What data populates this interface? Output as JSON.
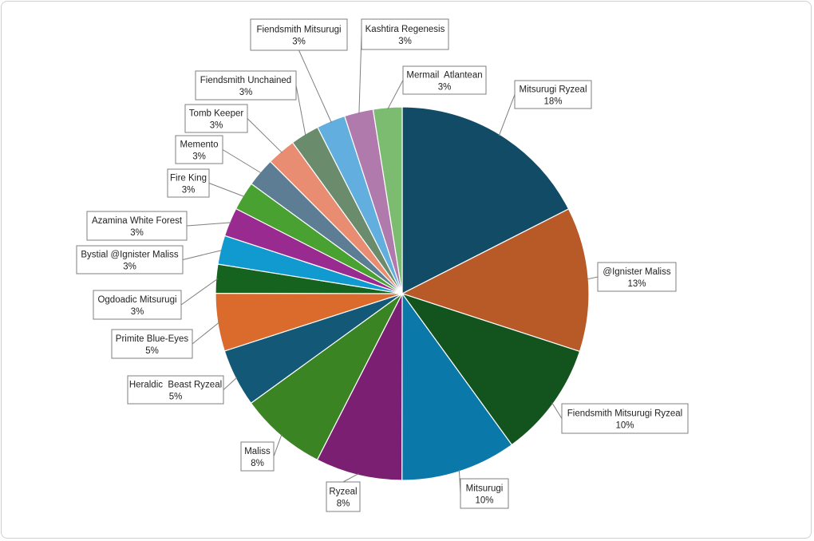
{
  "chart_data": {
    "type": "pie",
    "title": "",
    "start_angle_deg": 0,
    "direction": "clockwise",
    "slices": [
      {
        "label": "Mitsurugi Ryzeal",
        "percent_label": "18%",
        "value": 17.95,
        "color": "#124b66"
      },
      {
        "label": "@Ignister Maliss",
        "percent_label": "13%",
        "value": 12.82,
        "color": "#b85a27"
      },
      {
        "label": "Fiendsmith Mitsurugi Ryzeal",
        "percent_label": "10%",
        "value": 10.26,
        "color": "#12531e"
      },
      {
        "label": "Mitsurugi",
        "percent_label": "10%",
        "value": 10.26,
        "color": "#0a78a8"
      },
      {
        "label": "Ryzeal",
        "percent_label": "8%",
        "value": 7.69,
        "color": "#7a1f72"
      },
      {
        "label": "Maliss",
        "percent_label": "8%",
        "value": 7.69,
        "color": "#3a8424"
      },
      {
        "label": "Heraldic  Beast Ryzeal",
        "percent_label": "5%",
        "value": 5.13,
        "color": "#135877"
      },
      {
        "label": "Primite Blue-Eyes",
        "percent_label": "5%",
        "value": 5.13,
        "color": "#db6a2d"
      },
      {
        "label": "Ogdoadic Mitsurugi",
        "percent_label": "3%",
        "value": 2.56,
        "color": "#16621f"
      },
      {
        "label": "Bystial @Ignister Maliss",
        "percent_label": "3%",
        "value": 2.56,
        "color": "#119ad0"
      },
      {
        "label": "Azamina White Forest",
        "percent_label": "3%",
        "value": 2.56,
        "color": "#992b90"
      },
      {
        "label": "Fire King",
        "percent_label": "3%",
        "value": 2.56,
        "color": "#49a131"
      },
      {
        "label": "Memento",
        "percent_label": "3%",
        "value": 2.56,
        "color": "#5d7d95"
      },
      {
        "label": "Tomb Keeper",
        "percent_label": "3%",
        "value": 2.56,
        "color": "#e88d72"
      },
      {
        "label": "Fiendsmith Unchained",
        "percent_label": "3%",
        "value": 2.56,
        "color": "#6a8b6c"
      },
      {
        "label": "Fiendsmith Mitsurugi",
        "percent_label": "3%",
        "value": 2.56,
        "color": "#61aedf"
      },
      {
        "label": "Kashtira Regenesis",
        "percent_label": "3%",
        "value": 2.56,
        "color": "#b17aad"
      },
      {
        "label": "Mermail  Atlantean",
        "percent_label": "3%",
        "value": 2.56,
        "color": "#7cbc70"
      }
    ]
  }
}
